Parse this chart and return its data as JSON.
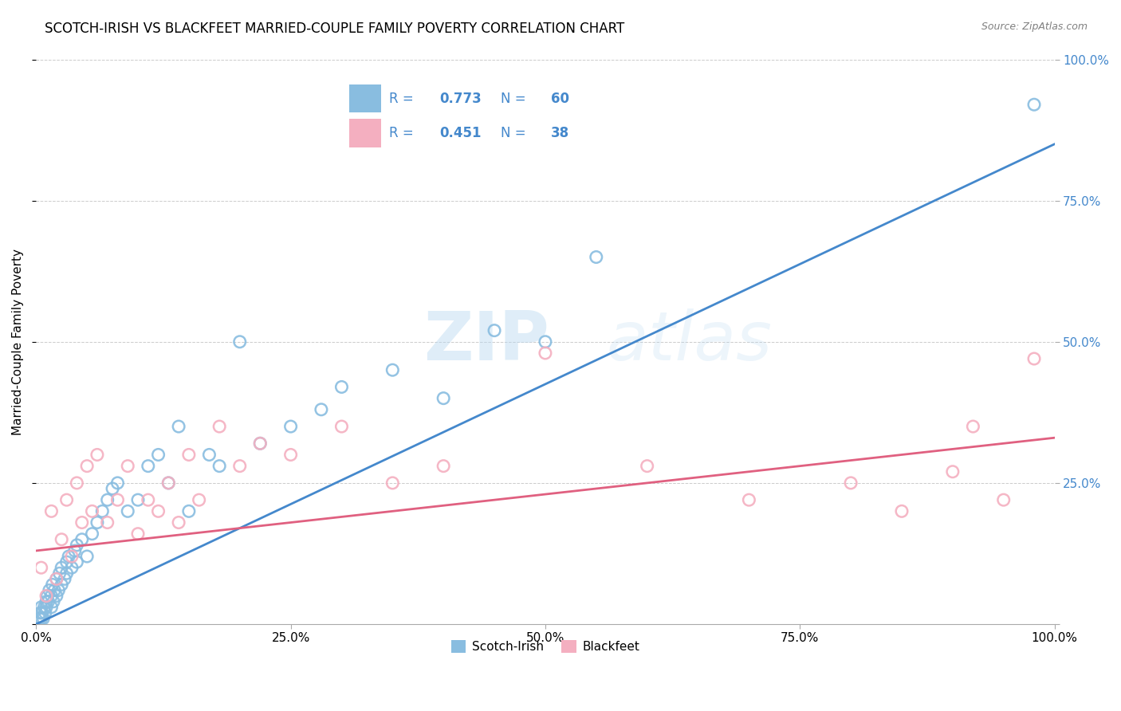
{
  "title": "SCOTCH-IRISH VS BLACKFEET MARRIED-COUPLE FAMILY POVERTY CORRELATION CHART",
  "source": "Source: ZipAtlas.com",
  "ylabel": "Married-Couple Family Poverty",
  "xlim": [
    0,
    100
  ],
  "ylim": [
    0,
    100
  ],
  "xtick_labels": [
    "0.0%",
    "25.0%",
    "50.0%",
    "75.0%",
    "100.0%"
  ],
  "xtick_vals": [
    0,
    25,
    50,
    75,
    100
  ],
  "ytick_vals": [
    0,
    25,
    50,
    75,
    100
  ],
  "scotch_irish_color": "#89bde0",
  "blackfeet_color": "#f4afc0",
  "scotch_irish_line_color": "#4488cc",
  "blackfeet_line_color": "#e06080",
  "legend_text_color": "#4488cc",
  "scotch_irish_R": "0.773",
  "scotch_irish_N": "60",
  "blackfeet_R": "0.451",
  "blackfeet_N": "38",
  "watermark_zip": "ZIP",
  "watermark_atlas": "atlas",
  "background_color": "#ffffff",
  "si_line_x0": 0,
  "si_line_y0": 0,
  "si_line_x1": 100,
  "si_line_y1": 85,
  "bf_line_x0": 0,
  "bf_line_y0": 13,
  "bf_line_x1": 100,
  "bf_line_y1": 33,
  "scotch_irish_x": [
    0.3,
    0.4,
    0.5,
    0.5,
    0.6,
    0.7,
    0.8,
    0.9,
    1.0,
    1.0,
    1.1,
    1.2,
    1.3,
    1.5,
    1.5,
    1.6,
    1.7,
    1.8,
    2.0,
    2.0,
    2.2,
    2.3,
    2.5,
    2.5,
    2.8,
    3.0,
    3.0,
    3.2,
    3.5,
    3.8,
    4.0,
    4.0,
    4.5,
    5.0,
    5.5,
    6.0,
    6.5,
    7.0,
    7.5,
    8.0,
    9.0,
    10.0,
    11.0,
    12.0,
    13.0,
    14.0,
    15.0,
    17.0,
    18.0,
    20.0,
    22.0,
    25.0,
    28.0,
    30.0,
    35.0,
    40.0,
    45.0,
    50.0,
    55.0,
    98.0
  ],
  "scotch_irish_y": [
    1,
    2,
    1,
    3,
    2,
    1,
    3,
    2,
    4,
    3,
    5,
    4,
    6,
    3,
    5,
    7,
    4,
    6,
    5,
    8,
    6,
    9,
    7,
    10,
    8,
    9,
    11,
    12,
    10,
    13,
    14,
    11,
    15,
    12,
    16,
    18,
    20,
    22,
    24,
    25,
    20,
    22,
    28,
    30,
    25,
    35,
    20,
    30,
    28,
    50,
    32,
    35,
    38,
    42,
    45,
    40,
    52,
    50,
    65,
    92
  ],
  "blackfeet_x": [
    0.5,
    1.0,
    1.5,
    2.0,
    2.5,
    3.0,
    3.5,
    4.0,
    4.5,
    5.0,
    5.5,
    6.0,
    7.0,
    8.0,
    9.0,
    10.0,
    11.0,
    12.0,
    13.0,
    14.0,
    15.0,
    16.0,
    18.0,
    20.0,
    22.0,
    25.0,
    30.0,
    35.0,
    40.0,
    50.0,
    60.0,
    70.0,
    80.0,
    85.0,
    90.0,
    92.0,
    95.0,
    98.0
  ],
  "blackfeet_y": [
    10,
    5,
    20,
    8,
    15,
    22,
    12,
    25,
    18,
    28,
    20,
    30,
    18,
    22,
    28,
    16,
    22,
    20,
    25,
    18,
    30,
    22,
    35,
    28,
    32,
    30,
    35,
    25,
    28,
    48,
    28,
    22,
    25,
    20,
    27,
    35,
    22,
    47
  ]
}
